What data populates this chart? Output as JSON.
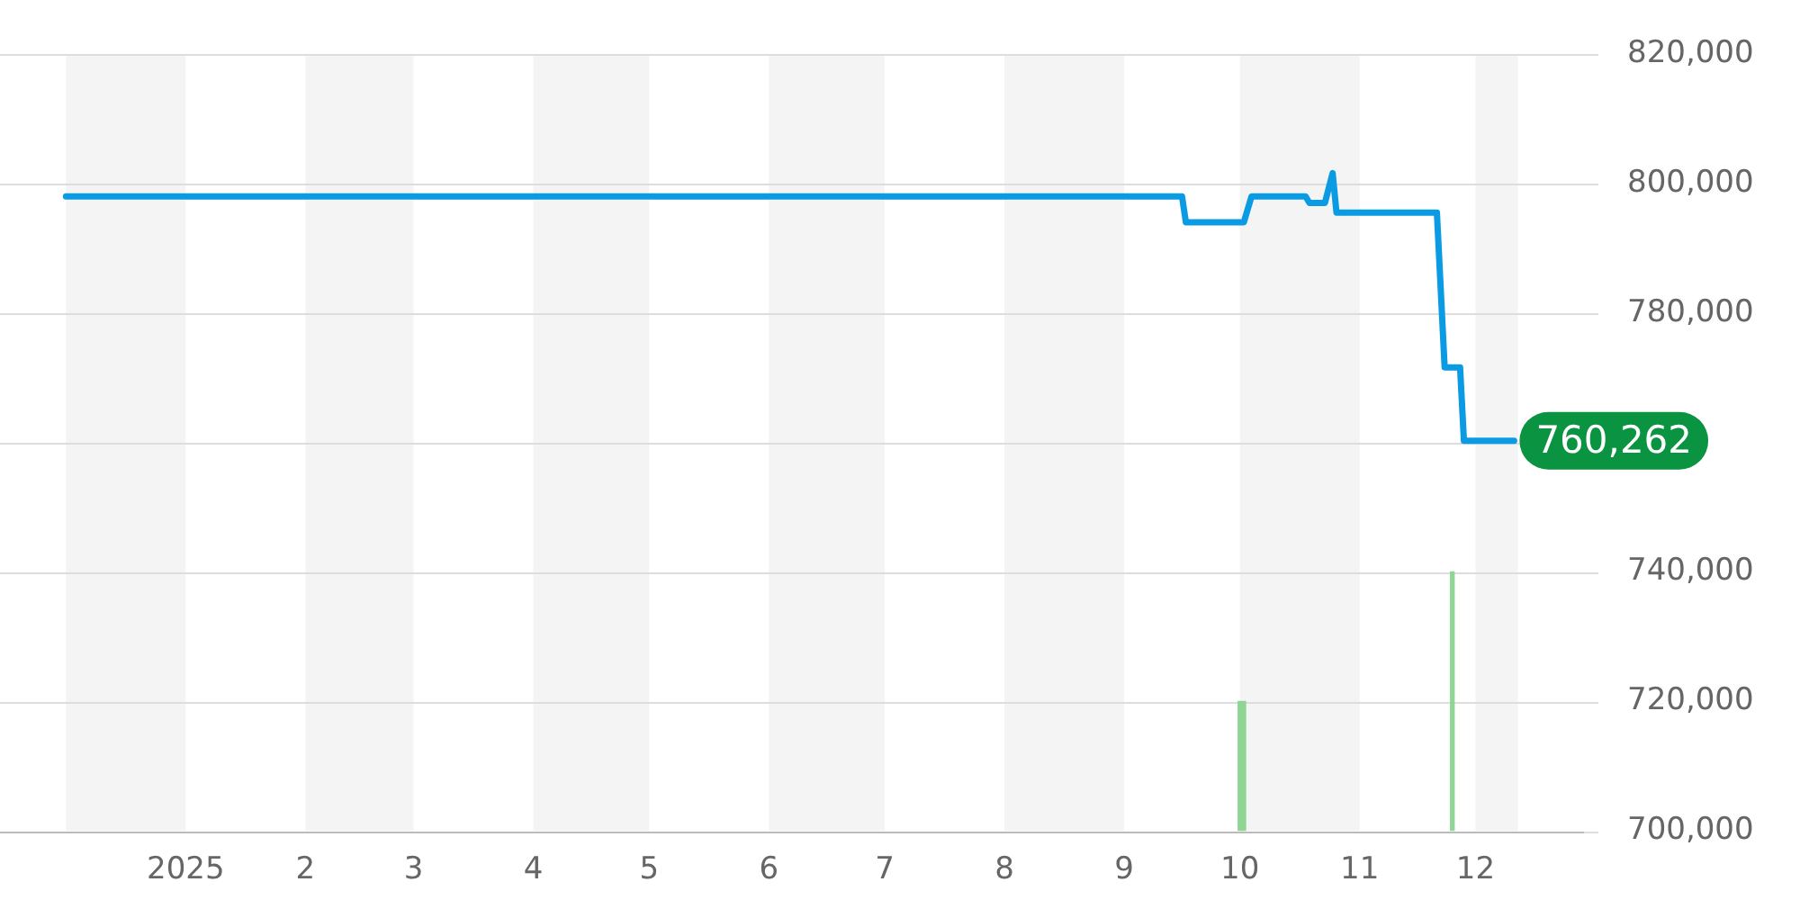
{
  "chart_data": {
    "type": "line",
    "xlim": [
      "2024-12-01",
      "2025-12-12"
    ],
    "xticks": [
      {
        "value": "2025-01-01",
        "label": "2025"
      },
      {
        "value": "2025-02-01",
        "label": "2"
      },
      {
        "value": "2025-03-01",
        "label": "3"
      },
      {
        "value": "2025-04-01",
        "label": "4"
      },
      {
        "value": "2025-05-01",
        "label": "5"
      },
      {
        "value": "2025-06-01",
        "label": "6"
      },
      {
        "value": "2025-07-01",
        "label": "7"
      },
      {
        "value": "2025-08-01",
        "label": "8"
      },
      {
        "value": "2025-09-01",
        "label": "9"
      },
      {
        "value": "2025-10-01",
        "label": "10"
      },
      {
        "value": "2025-11-01",
        "label": "11"
      },
      {
        "value": "2025-12-01",
        "label": "12"
      }
    ],
    "ylim": [
      700000,
      820000
    ],
    "yticks": [
      {
        "value": 700000,
        "label": "700,000"
      },
      {
        "value": 720000,
        "label": "720,000"
      },
      {
        "value": 740000,
        "label": "740,000"
      },
      {
        "value": 760000,
        "label": null
      },
      {
        "value": 780000,
        "label": "780,000"
      },
      {
        "value": 800000,
        "label": "800,000"
      },
      {
        "value": 820000,
        "label": "820,000"
      }
    ],
    "grid": "y",
    "legend": false,
    "series": [
      {
        "color": "#0a9be3",
        "x": [
          "2024-12-01",
          "2025-09-16",
          "2025-09-17",
          "2025-10-02",
          "2025-10-04",
          "2025-10-18",
          "2025-10-19",
          "2025-10-23",
          "2025-10-25",
          "2025-10-26",
          "2025-11-21",
          "2025-11-23",
          "2025-11-27",
          "2025-11-28",
          "2025-12-11"
        ],
        "values": [
          798000,
          798000,
          794000,
          794000,
          798000,
          798000,
          797000,
          797000,
          801600,
          795500,
          795500,
          771600,
          771600,
          760262,
          760262
        ]
      },
      {
        "type": "bar",
        "color": "#8fd694",
        "x": [
          "2025-10-01",
          "2025-10-02",
          "2025-11-25"
        ],
        "values": [
          720000,
          720000,
          740000
        ]
      }
    ],
    "bands": [
      {
        "axis": "x",
        "from": "2024-12-01",
        "to": "2025-01-01",
        "color": "#f4f4f4"
      },
      {
        "axis": "x",
        "from": "2025-02-01",
        "to": "2025-03-01",
        "color": "#f4f4f4"
      },
      {
        "axis": "x",
        "from": "2025-04-01",
        "to": "2025-05-01",
        "color": "#f4f4f4"
      },
      {
        "axis": "x",
        "from": "2025-06-01",
        "to": "2025-07-01",
        "color": "#f4f4f4"
      },
      {
        "axis": "x",
        "from": "2025-08-01",
        "to": "2025-09-01",
        "color": "#f4f4f4"
      },
      {
        "axis": "x",
        "from": "2025-10-01",
        "to": "2025-11-01",
        "color": "#f4f4f4"
      },
      {
        "axis": "x",
        "from": "2025-12-01",
        "to": "2025-12-12",
        "color": "#f4f4f4"
      }
    ],
    "annotations": [
      {
        "text": "760,262",
        "x": "2025-12-11",
        "y": 760262
      }
    ]
  }
}
